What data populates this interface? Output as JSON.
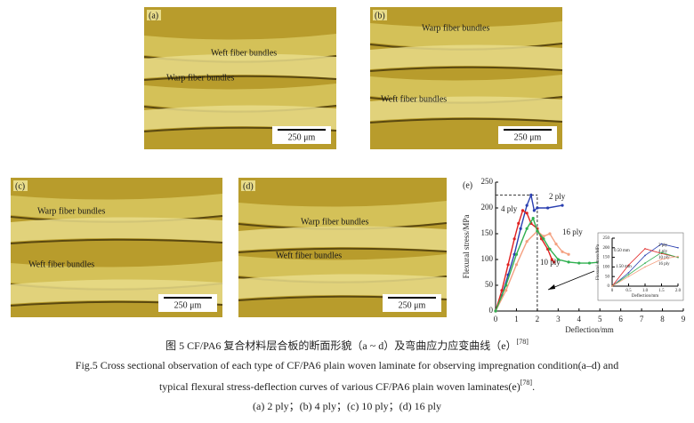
{
  "panels": [
    {
      "label": "(a)",
      "annotations": [
        "Weft fiber bundles",
        "Warp fiber bundles"
      ],
      "scale_bar": "250 μm"
    },
    {
      "label": "(b)",
      "annotations": [
        "Warp fiber bundles",
        "Weft fiber bundles"
      ],
      "scale_bar": "250 μm"
    },
    {
      "label": "(c)",
      "annotations": [
        "Warp fiber bundles",
        "Weft fiber bundles"
      ],
      "scale_bar": "250 μm"
    },
    {
      "label": "(d)",
      "annotations": [
        "Warp fiber bundles",
        "Weft fiber bundles"
      ],
      "scale_bar": "250 μm"
    }
  ],
  "chart_data": [
    {
      "type": "line",
      "label": "(e)",
      "x_label": "Deflection/mm",
      "y_label": "Flexural stress/MPa",
      "xlim": [
        0,
        9
      ],
      "ylim": [
        0,
        250
      ],
      "xticks": [
        0,
        1,
        2,
        3,
        4,
        5,
        6,
        7,
        8,
        9
      ],
      "yticks": [
        0,
        50,
        100,
        150,
        200,
        250
      ],
      "ref_lines": {
        "x": 2,
        "y": 225
      },
      "series": [
        {
          "name": "2 ply",
          "color": "#2a3fb0",
          "x": [
            0,
            0.3,
            0.6,
            0.9,
            1.2,
            1.5,
            1.7,
            1.85,
            2.0,
            2.5,
            3.2
          ],
          "values": [
            0,
            30,
            70,
            110,
            160,
            205,
            225,
            195,
            200,
            200,
            205
          ]
        },
        {
          "name": "4 ply",
          "color": "#e02020",
          "x": [
            0,
            0.3,
            0.6,
            0.9,
            1.1,
            1.3,
            1.5,
            1.7,
            2.0,
            2.2,
            2.5,
            2.7,
            2.8
          ],
          "values": [
            0,
            40,
            90,
            140,
            170,
            195,
            190,
            170,
            160,
            140,
            120,
            100,
            95
          ]
        },
        {
          "name": "16 ply",
          "color": "#f4a080",
          "x": [
            0,
            0.5,
            1.0,
            1.5,
            2.0,
            2.3,
            2.6,
            2.9,
            3.2,
            3.5
          ],
          "values": [
            0,
            40,
            90,
            135,
            155,
            145,
            150,
            130,
            115,
            110
          ]
        },
        {
          "name": "10 ply",
          "color": "#30b050",
          "x": [
            0,
            0.5,
            1.0,
            1.5,
            1.8,
            2.0,
            2.3,
            2.6,
            3.0,
            3.5,
            4.0,
            4.5,
            5.0
          ],
          "values": [
            0,
            50,
            110,
            160,
            180,
            155,
            140,
            120,
            100,
            95,
            93,
            93,
            95
          ]
        }
      ]
    },
    {
      "type": "line",
      "x_label": "Deflection/mm",
      "y_label": "Flexural stress/MPa",
      "xlim": [
        0,
        2.0
      ],
      "ylim": [
        0,
        250
      ],
      "xticks": [
        0,
        0.5,
        {
          "value": 1,
          "label": "1.0"
        },
        1.5,
        {
          "value": 2,
          "label": "2.0"
        }
      ],
      "yticks": [
        0,
        50,
        100,
        150,
        200,
        250
      ],
      "annotations": [
        "0.50 mm",
        "1.50 mm"
      ],
      "series": [
        {
          "name": "2 ply",
          "color": "#2a3fb0",
          "x": [
            0,
            0.5,
            1.0,
            1.5,
            2.0
          ],
          "values": [
            0,
            70,
            160,
            220,
            200
          ]
        },
        {
          "name": "4 ply",
          "color": "#e02020",
          "x": [
            0,
            0.5,
            1.0,
            1.5,
            2.0
          ],
          "values": [
            0,
            110,
            195,
            170,
            150
          ]
        },
        {
          "name": "10 ply",
          "color": "#30b050",
          "x": [
            0,
            0.5,
            1.0,
            1.5,
            2.0
          ],
          "values": [
            0,
            60,
            120,
            175,
            150
          ]
        },
        {
          "name": "16 ply",
          "color": "#f4a080",
          "x": [
            0,
            0.5,
            1.0,
            1.5,
            2.0
          ],
          "values": [
            0,
            50,
            100,
            140,
            155
          ]
        }
      ]
    }
  ],
  "caption": {
    "cn": "图 5   CF/PA6 复合材料层合板的断面形貌（a ~ d）及弯曲应力应变曲线（e）",
    "cn_ref": "[78]",
    "en_line1": "Fig.5   Cross sectional observation of each type of CF/PA6 plain woven laminate for observing impregnation condition(a–d) and",
    "en_line2": "typical flexural stress-deflection curves of various CF/PA6 plain woven laminates(e)",
    "en_ref": "[78]",
    "en_end": ".",
    "sub": "(a)   2 ply；(b)   4 ply；(c)   10 ply；(d)   16 ply"
  }
}
